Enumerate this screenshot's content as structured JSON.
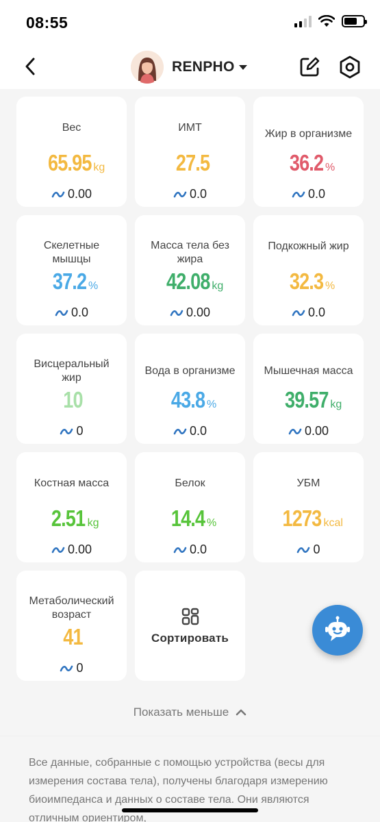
{
  "status_bar": {
    "time": "08:55"
  },
  "header": {
    "username": "RENPHO"
  },
  "colors": {
    "yellow": "#f3b941",
    "red": "#e05a6a",
    "blue": "#4aa9e6",
    "green": "#3fae6a",
    "light_green": "#a8e0a8",
    "lime": "#57c43a",
    "trend_blue": "#2f74c0"
  },
  "metrics": [
    {
      "label": "Вес",
      "value": "65.95",
      "unit": "kg",
      "trend": "0.00",
      "color": "#f3b941"
    },
    {
      "label": "ИМТ",
      "value": "27.5",
      "unit": "",
      "trend": "0.0",
      "color": "#f3b941"
    },
    {
      "label": "Жир в организме",
      "value": "36.2",
      "unit": "%",
      "trend": "0.0",
      "color": "#e05a6a"
    },
    {
      "label": "Скелетные мышцы",
      "value": "37.2",
      "unit": "%",
      "trend": "0.0",
      "color": "#4aa9e6"
    },
    {
      "label": "Масса тела без жира",
      "value": "42.08",
      "unit": "kg",
      "trend": "0.00",
      "color": "#3fae6a"
    },
    {
      "label": "Подкожный жир",
      "value": "32.3",
      "unit": "%",
      "trend": "0.0",
      "color": "#f3b941"
    },
    {
      "label": "Висцеральный жир",
      "value": "10",
      "unit": "",
      "trend": "0",
      "color": "#a8e0a8"
    },
    {
      "label": "Вода в организме",
      "value": "43.8",
      "unit": "%",
      "trend": "0.0",
      "color": "#4aa9e6"
    },
    {
      "label": "Мышечная масса",
      "value": "39.57",
      "unit": "kg",
      "trend": "0.00",
      "color": "#3fae6a"
    },
    {
      "label": "Костная масса",
      "value": "2.51",
      "unit": "kg",
      "trend": "0.00",
      "color": "#57c43a"
    },
    {
      "label": "Белок",
      "value": "14.4",
      "unit": "%",
      "trend": "0.0",
      "color": "#57c43a"
    },
    {
      "label": "УБМ",
      "value": "1273",
      "unit": "kcal",
      "trend": "0",
      "color": "#f3b941"
    },
    {
      "label": "Метаболический возраст",
      "value": "41",
      "unit": "",
      "trend": "0",
      "color": "#f3b941"
    }
  ],
  "sort": {
    "label": "Сортировать",
    "icon": "sort-grid-icon"
  },
  "show_less": "Показать меньше",
  "disclaimer": "Все данные, собранные с помощью устройства (весы для измерения состава тела), получены благодаря измерению биоимпеданса и данных о составе тела. Они являются отличным ориентиром,"
}
